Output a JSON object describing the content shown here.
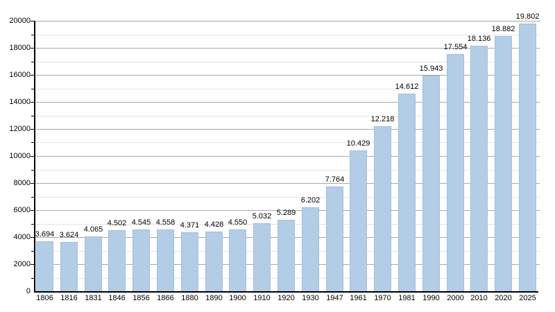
{
  "chart_data": {
    "type": "bar",
    "title": "",
    "xlabel": "",
    "ylabel": "",
    "categories": [
      "1806",
      "1816",
      "1831",
      "1846",
      "1856",
      "1866",
      "1880",
      "1890",
      "1900",
      "1910",
      "1920",
      "1930",
      "1947",
      "1961",
      "1970",
      "1981",
      "1990",
      "2000",
      "2010",
      "2020",
      "2025"
    ],
    "values": [
      3694,
      3624,
      4065,
      4502,
      4545,
      4558,
      4371,
      4428,
      4550,
      5032,
      5289,
      6202,
      7764,
      10429,
      12218,
      14612,
      15943,
      17554,
      18136,
      18882,
      19802
    ],
    "value_labels": [
      "3.694",
      "3.624",
      "4.065",
      "4.502",
      "4.545",
      "4.558",
      "4.371",
      "4.428",
      "4.550",
      "5.032",
      "5.289",
      "6.202",
      "7.764",
      "10.429",
      "12.218",
      "14.612",
      "15.943",
      "17.554",
      "18.136",
      "18.882",
      "19.802"
    ],
    "ylim": [
      0,
      20000
    ],
    "y_major_step": 2000,
    "y_minor_step": 1000,
    "y_tick_labels": [
      "0",
      "2000",
      "4000",
      "6000",
      "8000",
      "10000",
      "12000",
      "14000",
      "16000",
      "18000",
      "20000"
    ],
    "grid": true,
    "legend": "none",
    "colors": {
      "bar_fill": "#b3cde6",
      "bar_border": "#a1bedb",
      "major_gridline": "#a8a8a8",
      "minor_gridline": "#e3e3e3",
      "axis": "#000000",
      "text": "#000000"
    }
  }
}
